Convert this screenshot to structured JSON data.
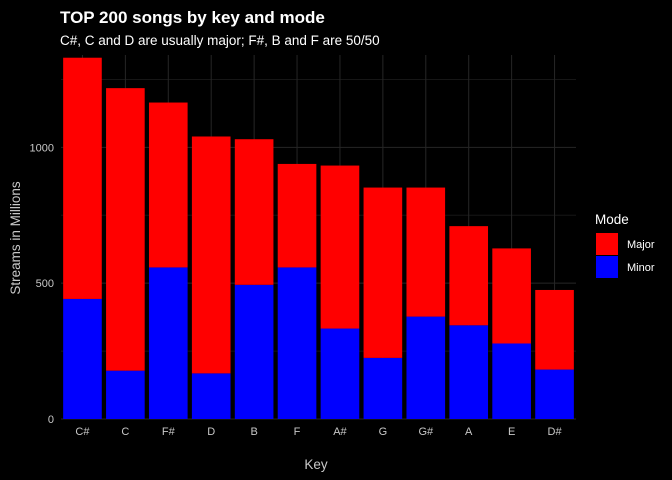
{
  "chart_data": {
    "type": "bar",
    "stacked": true,
    "title": "TOP 200 songs by key and mode",
    "subtitle": "C#, C and D are usually major; F#, B and F are 50/50",
    "xlabel": "Key",
    "ylabel": "Streams in Millions",
    "ylim": [
      0,
      1340
    ],
    "yticks": [
      0,
      500,
      1000
    ],
    "ytick_labels": [
      "0",
      "500",
      "1000"
    ],
    "grid": true,
    "categories": [
      "C#",
      "C",
      "F#",
      "D",
      "B",
      "F",
      "A#",
      "G",
      "G#",
      "A",
      "E",
      "D#"
    ],
    "series": [
      {
        "name": "Minor",
        "color": "#0000ff",
        "values": [
          442,
          178,
          558,
          168,
          494,
          558,
          333,
          225,
          377,
          345,
          278,
          182
        ]
      },
      {
        "name": "Major",
        "color": "#ff0000",
        "values": [
          888,
          1040,
          607,
          872,
          536,
          381,
          600,
          627,
          475,
          365,
          350,
          293
        ]
      }
    ],
    "legend": {
      "title": "Mode",
      "position": "right",
      "items": [
        {
          "label": "Major",
          "color": "#ff0000"
        },
        {
          "label": "Minor",
          "color": "#0000ff"
        }
      ]
    }
  }
}
